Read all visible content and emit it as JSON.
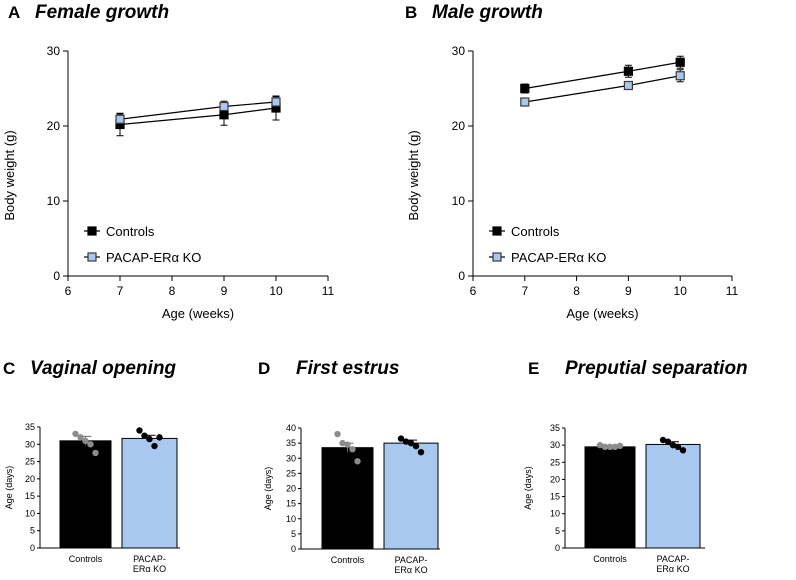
{
  "colors": {
    "controls": "#000000",
    "ko_fill": "#a9c8f0",
    "ko_stroke": "#3a3a3a",
    "dot_controls": "#8c8c8c",
    "dot_ko": "#000000"
  },
  "chart_data": [
    {
      "id": "A",
      "letter": "A",
      "type": "line",
      "title": "Female growth",
      "xlabel": "Age (weeks)",
      "ylabel": "Body weight (g)",
      "xlim": [
        6,
        11
      ],
      "ylim": [
        0,
        30
      ],
      "xticks": [
        "6",
        "7",
        "8",
        "9",
        "10",
        "11"
      ],
      "yticks": [
        "0",
        "10",
        "20",
        "30"
      ],
      "x": [
        7,
        9,
        10
      ],
      "legend": [
        "Controls",
        "PACAP-ERα KO"
      ],
      "series": [
        {
          "name": "Controls",
          "values": [
            20.2,
            21.5,
            22.4
          ],
          "errors": [
            1.5,
            1.4,
            1.6
          ]
        },
        {
          "name": "PACAP-ERα KO",
          "values": [
            20.9,
            22.6,
            23.2
          ],
          "errors": [
            0.7,
            0.7,
            0.7
          ]
        }
      ]
    },
    {
      "id": "B",
      "letter": "B",
      "type": "line",
      "title": "Male growth",
      "xlabel": "Age (weeks)",
      "ylabel": "Body weight (g)",
      "xlim": [
        6,
        11
      ],
      "ylim": [
        0,
        30
      ],
      "xticks": [
        "6",
        "7",
        "8",
        "9",
        "10",
        "11"
      ],
      "yticks": [
        "0",
        "10",
        "20",
        "30"
      ],
      "x": [
        7,
        9,
        10
      ],
      "legend": [
        "Controls",
        "PACAP-ERα KO"
      ],
      "series": [
        {
          "name": "Controls",
          "values": [
            25.0,
            27.3,
            28.5
          ],
          "errors": [
            0.6,
            0.8,
            0.8
          ]
        },
        {
          "name": "PACAP-ERα KO",
          "values": [
            23.2,
            25.4,
            26.7
          ],
          "errors": [
            0.4,
            0.4,
            0.8
          ]
        }
      ]
    },
    {
      "id": "C",
      "letter": "C",
      "type": "bar",
      "title": "Vaginal opening",
      "ylabel": "Age (days)",
      "ylim": [
        0,
        35
      ],
      "yticks": [
        "0",
        "5",
        "10",
        "15",
        "20",
        "25",
        "30",
        "35"
      ],
      "categories": [
        "Controls",
        "PACAP-ERα KO"
      ],
      "cat_lines": [
        [
          "Controls"
        ],
        [
          "PACAP-",
          "ERα KO"
        ]
      ],
      "values": [
        31.0,
        31.7
      ],
      "errors": [
        1.3,
        0.9
      ],
      "points": [
        [
          33,
          32,
          31,
          30,
          27.5
        ],
        [
          34,
          32.5,
          31.5,
          29.5,
          32
        ]
      ]
    },
    {
      "id": "D",
      "letter": "D",
      "type": "bar",
      "title": "First estrus",
      "ylabel": "Age (days)",
      "ylim": [
        0,
        40
      ],
      "yticks": [
        "0",
        "5",
        "10",
        "15",
        "20",
        "25",
        "30",
        "35",
        "40"
      ],
      "categories": [
        "Controls",
        "PACAP-ERα KO"
      ],
      "cat_lines": [
        [
          "Controls"
        ],
        [
          "PACAP-",
          "ERα KO"
        ]
      ],
      "values": [
        33.5,
        35.0
      ],
      "errors": [
        1.5,
        1.0
      ],
      "points": [
        [
          38,
          35,
          34.5,
          33,
          29
        ],
        [
          36.5,
          35.5,
          35,
          34,
          32
        ]
      ]
    },
    {
      "id": "E",
      "letter": "E",
      "type": "bar",
      "title": "Preputial separation",
      "ylabel": "Age (days)",
      "ylim": [
        0,
        35
      ],
      "yticks": [
        "0",
        "5",
        "10",
        "15",
        "20",
        "25",
        "30",
        "35"
      ],
      "categories": [
        "Controls",
        "PACAP-ERα KO"
      ],
      "cat_lines": [
        [
          "Controls"
        ],
        [
          "PACAP-",
          "ERα KO"
        ]
      ],
      "values": [
        29.5,
        30.2
      ],
      "errors": [
        0.4,
        0.8
      ],
      "points": [
        [
          30,
          29.5,
          29.5,
          29.5,
          29.8
        ],
        [
          31.5,
          31,
          30,
          29.5,
          28.5
        ]
      ]
    }
  ]
}
